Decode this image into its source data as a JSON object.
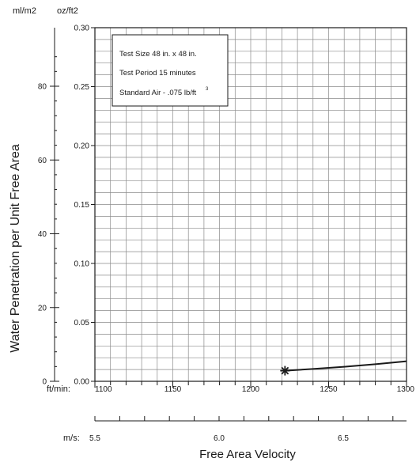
{
  "chart_data": {
    "type": "line",
    "ylabel": "Water Penetration per Unit Free Area",
    "xlabel": "Free Area Velocity",
    "y_left_unit": "ml/m2",
    "y_right_unit": "oz/ft2",
    "x_top_unit": "ft/min:",
    "x_bottom_unit": "m/s:",
    "x_ft_min": {
      "range": [
        1100,
        1300
      ],
      "ticks": [
        "1100",
        "1150",
        "1200",
        "1250",
        "1300"
      ],
      "values": [
        1100,
        1150,
        1200,
        1250,
        1300
      ]
    },
    "x_m_s": {
      "ticks": [
        "5.5",
        "6.0",
        "6.5"
      ],
      "values": [
        5.5,
        6.0,
        6.5
      ]
    },
    "y_oz_ft2": {
      "range": [
        0,
        0.3
      ],
      "ticks": [
        "0.30",
        "0.25",
        "0.20",
        "0.15",
        "0.10",
        "0.05",
        "0.00"
      ],
      "values": [
        0.3,
        0.25,
        0.2,
        0.15,
        0.1,
        0.05,
        0.0
      ]
    },
    "y_ml_m2": {
      "ticks": [
        "80",
        "60",
        "40",
        "20",
        "0"
      ],
      "values": [
        80,
        60,
        40,
        20,
        0
      ]
    },
    "grid": true,
    "legend_box": {
      "lines": [
        "Test Size 48 in. x 48 in.",
        "Test Period 15 minutes",
        "Standard Air - .075 lb/ft"
      ],
      "superscript": "3"
    },
    "series": [
      {
        "x": [
          1222,
          1240,
          1260,
          1280,
          1300
        ],
        "y": [
          0.009,
          0.0105,
          0.0123,
          0.0145,
          0.017
        ]
      }
    ],
    "marker": {
      "x": 1222,
      "y": 0.009,
      "symbol": "asterisk"
    }
  }
}
